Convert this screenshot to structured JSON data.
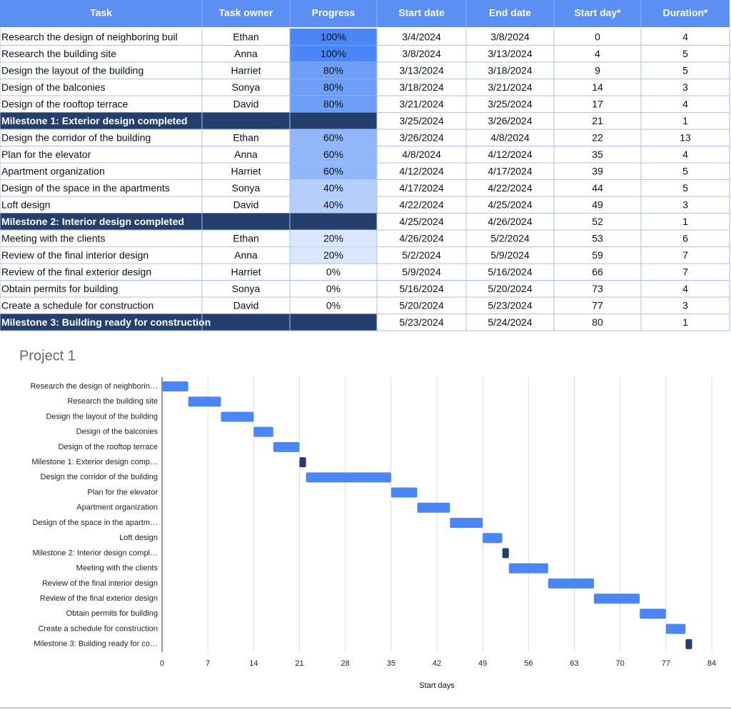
{
  "table": {
    "columns": [
      "Task",
      "Task owner",
      "Progress",
      "Start date",
      "End date",
      "Start day*",
      "Duration*"
    ],
    "header_fill": "#5b8ff4",
    "milestone_fill": "#243f6d",
    "rows": [
      {
        "cells": [
          "Research the design of neighboring buil",
          "Ethan",
          "100%",
          "3/4/2024",
          "3/8/2024",
          0,
          4
        ],
        "progress_fill": "#4a86f7"
      },
      {
        "cells": [
          "Research the building site",
          "Anna",
          "100%",
          "3/8/2024",
          "3/13/2024",
          4,
          5
        ],
        "progress_fill": "#4a86f7"
      },
      {
        "cells": [
          "Design the layout of the building",
          "Harriet",
          "80%",
          "3/13/2024",
          "3/18/2024",
          9,
          5
        ],
        "progress_fill": "#6d9ff8"
      },
      {
        "cells": [
          "Design of the balconies",
          "Sonya",
          "80%",
          "3/18/2024",
          "3/21/2024",
          14,
          3
        ],
        "progress_fill": "#6d9ff8"
      },
      {
        "cells": [
          "Design of the rooftop terrace",
          "David",
          "80%",
          "3/21/2024",
          "3/25/2024",
          17,
          4
        ],
        "progress_fill": "#6d9ff8"
      },
      {
        "cells": [
          "Milestone 1: Exterior design completed",
          null,
          null,
          "3/25/2024",
          "3/26/2024",
          21,
          1
        ],
        "milestone": true
      },
      {
        "cells": [
          "Design the corridor of the building",
          "Ethan",
          "60%",
          "3/26/2024",
          "4/8/2024",
          22,
          13
        ],
        "progress_fill": "#91b6f9"
      },
      {
        "cells": [
          "Plan for the elevator",
          "Anna",
          "60%",
          "4/8/2024",
          "4/12/2024",
          35,
          4
        ],
        "progress_fill": "#91b6f9"
      },
      {
        "cells": [
          "Apartment organization",
          "Harriet",
          "60%",
          "4/12/2024",
          "4/17/2024",
          39,
          5
        ],
        "progress_fill": "#91b6f9"
      },
      {
        "cells": [
          "Design of the space in the apartments",
          "Sonya",
          "40%",
          "4/17/2024",
          "4/22/2024",
          44,
          5
        ],
        "progress_fill": "#b6cefb"
      },
      {
        "cells": [
          "Loft design",
          "David",
          "40%",
          "4/22/2024",
          "4/25/2024",
          49,
          3
        ],
        "progress_fill": "#b6cefb"
      },
      {
        "cells": [
          "Milestone 2: Interior design completed",
          null,
          null,
          "4/25/2024",
          "4/26/2024",
          52,
          1
        ],
        "milestone": true
      },
      {
        "cells": [
          "Meeting with the clients",
          "Ethan",
          "20%",
          "4/26/2024",
          "5/2/2024",
          53,
          6
        ],
        "progress_fill": "#dae6fd"
      },
      {
        "cells": [
          "Review of the final interior design",
          "Anna",
          "20%",
          "5/2/2024",
          "5/9/2024",
          59,
          7
        ],
        "progress_fill": "#dae6fd"
      },
      {
        "cells": [
          "Review of the final exterior design",
          "Harriet",
          "0%",
          "5/9/2024",
          "5/16/2024",
          66,
          7
        ]
      },
      {
        "cells": [
          "Obtain permits for building",
          "Sonya",
          "0%",
          "5/16/2024",
          "5/20/2024",
          73,
          4
        ]
      },
      {
        "cells": [
          "Create a schedule for construction",
          "David",
          "0%",
          "5/20/2024",
          "5/23/2024",
          77,
          3
        ]
      },
      {
        "cells": [
          "Milestone 3: Building ready for construction",
          null,
          null,
          "5/23/2024",
          "5/24/2024",
          80,
          1
        ],
        "milestone": true
      }
    ]
  },
  "chart_data": {
    "type": "gantt",
    "title": "Project 1",
    "x_label": "Start days",
    "categories": [
      "Research the design of neighborin…",
      "Research the building site",
      "Design the layout of the building",
      "Design of the balconies",
      "Design of the rooftop terrace",
      "Milestone 1: Exterior design comp…",
      "Design the corridor of the building",
      "Plan for the elevator",
      "Apartment organization",
      "Design of the space in the apartm…",
      "Loft design",
      "Milestone 2: Interior design compl…",
      "Meeting with the clients",
      "Review of the final interior design",
      "Review of the final exterior design",
      "Obtain permits for building",
      "Create a schedule for construction",
      "Milestone 3: Building ready for co…"
    ],
    "start": [
      0,
      4,
      9,
      14,
      17,
      21,
      22,
      35,
      39,
      44,
      49,
      52,
      53,
      59,
      66,
      73,
      77,
      80
    ],
    "duration": [
      4,
      5,
      5,
      3,
      4,
      1,
      13,
      4,
      5,
      5,
      3,
      1,
      6,
      7,
      7,
      4,
      3,
      1
    ],
    "colors": [
      "#4a86f7",
      "#4a86f7",
      "#4a86f7",
      "#4a86f7",
      "#4a86f7",
      "#243f6d",
      "#4a86f7",
      "#4a86f7",
      "#4a86f7",
      "#4a86f7",
      "#4a86f7",
      "#243f6d",
      "#4a86f7",
      "#4a86f7",
      "#4a86f7",
      "#4a86f7",
      "#4a86f7",
      "#243f6d"
    ],
    "xlim": [
      0,
      84
    ],
    "xticks": [
      0,
      7,
      14,
      21,
      28,
      35,
      42,
      49,
      56,
      63,
      70,
      77,
      84
    ],
    "grid": true
  }
}
